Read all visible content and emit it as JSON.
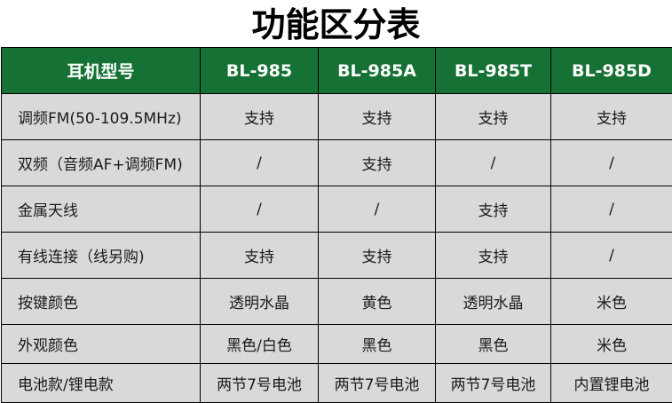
{
  "title": "功能区分表",
  "header": [
    "耳机型号",
    "BL-985",
    "BL-985A",
    "BL-985T",
    "BL-985D"
  ],
  "rows": [
    [
      "调频FM(50-109.5MHz)",
      "支持",
      "支持",
      "支持",
      "支持"
    ],
    [
      "双频（音频AF+调频FM)",
      "/",
      "支持",
      "/",
      "/"
    ],
    [
      "金属天线",
      "/",
      "/",
      "支持",
      "/"
    ],
    [
      "有线连接（线另购)",
      "支持",
      "支持",
      "支持",
      "/"
    ],
    [
      "按键颜色",
      "透明水晶",
      "黄色",
      "透明水晶",
      "米色"
    ],
    [
      "外观颜色",
      "黑色/白色",
      "黑色",
      "黑色",
      "米色"
    ],
    [
      "电池款/锂电款",
      "两节7号电池",
      "两节7号电池",
      "两节7号电池",
      "内置锂电池"
    ]
  ],
  "colors": {
    "header_bg": "#167234",
    "cell_bg": "#d9d9d9"
  }
}
